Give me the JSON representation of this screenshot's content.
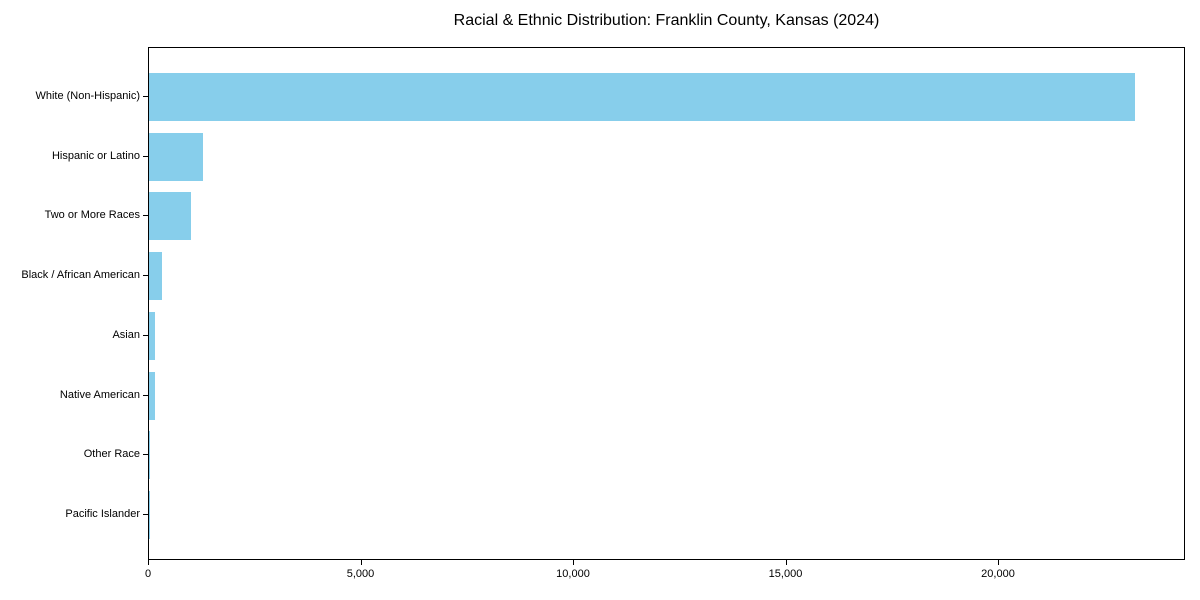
{
  "page": {
    "background": "#ffffff"
  },
  "chart_data": {
    "type": "bar",
    "orientation": "horizontal",
    "title": "Racial & Ethnic Distribution: Franklin County, Kansas (2024)",
    "categories": [
      "White (Non-Hispanic)",
      "Hispanic or Latino",
      "Two or More Races",
      "Black / African American",
      "Asian",
      "Native American",
      "Other Race",
      "Pacific Islander"
    ],
    "values": [
      23250,
      1280,
      990,
      310,
      150,
      140,
      25,
      10
    ],
    "bar_color": "#87CEEB",
    "spine_color": "#000000",
    "text_color": "#000000",
    "xlabel": "",
    "ylabel": "",
    "xlim": [
      0,
      24400
    ],
    "xticks": [
      0,
      5000,
      10000,
      15000,
      20000
    ],
    "xtick_labels": [
      "0",
      "5,000",
      "10,000",
      "15,000",
      "20,000"
    ],
    "grid": false,
    "legend": null
  }
}
